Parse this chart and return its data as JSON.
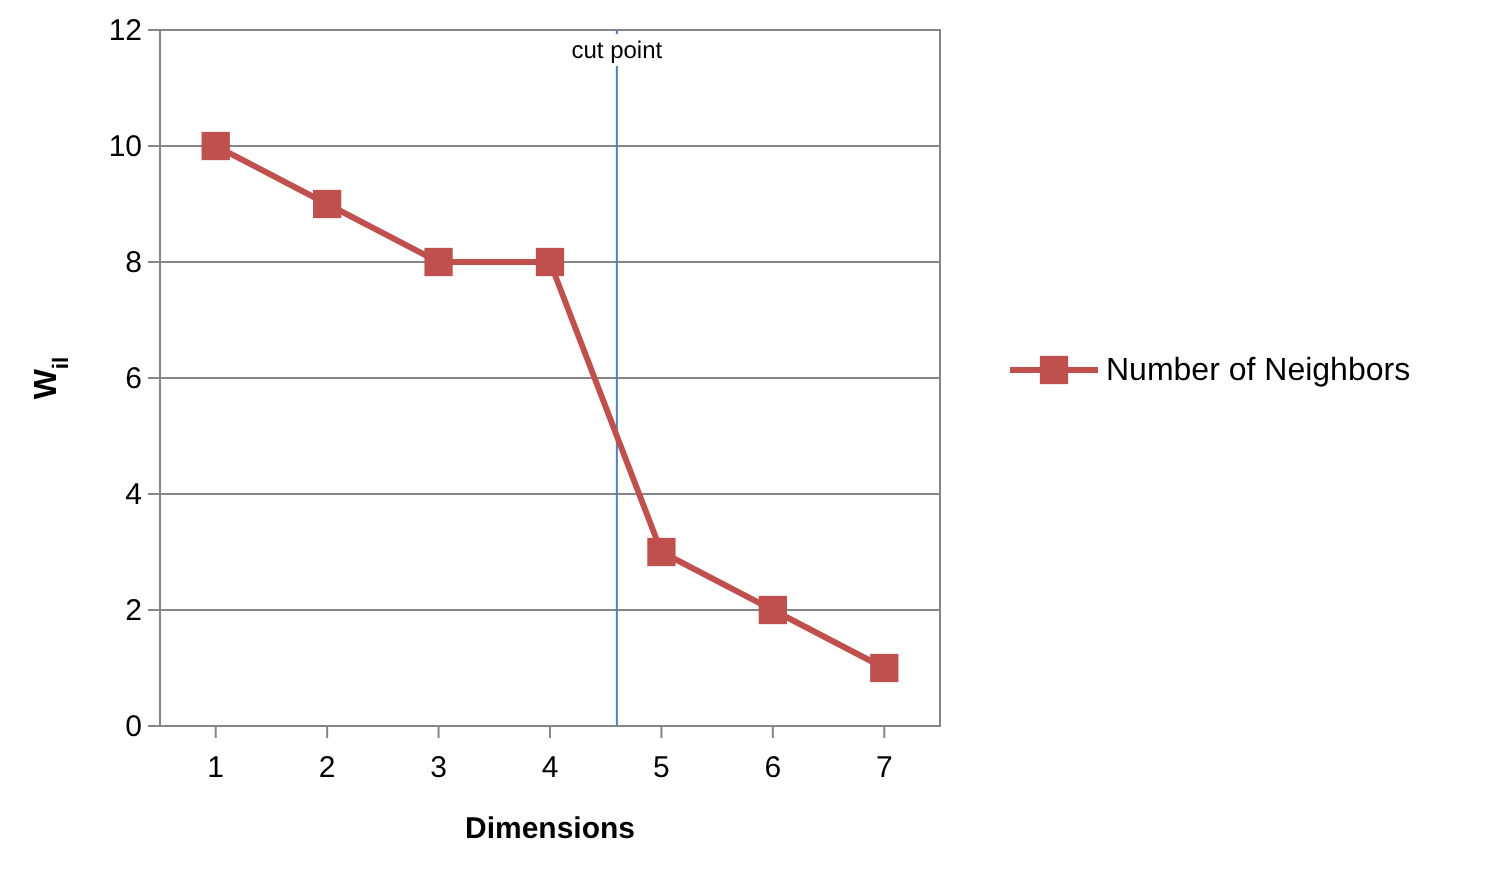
{
  "chart_data": {
    "type": "line",
    "xlabel": "Dimensions",
    "ylabel": "W$_{il}$",
    "x": [
      1,
      2,
      3,
      4,
      5,
      6,
      7
    ],
    "xlim": [
      0.5,
      7.5
    ],
    "xticks": [
      1,
      2,
      3,
      4,
      5,
      6,
      7
    ],
    "ylim": [
      0,
      12
    ],
    "yticks": [
      0,
      2,
      4,
      6,
      8,
      10,
      12
    ],
    "series": [
      {
        "name": "Number of Neighbors",
        "color": "#c0504d",
        "values": [
          10,
          9,
          8,
          8,
          3,
          2,
          1
        ]
      }
    ],
    "ref_lines": [
      {
        "axis": "x",
        "value": 4.6,
        "label": "cut point",
        "color": "#4f81bd"
      }
    ],
    "grid": "y",
    "legend": "right",
    "marker": "square",
    "line_style": "solid"
  }
}
